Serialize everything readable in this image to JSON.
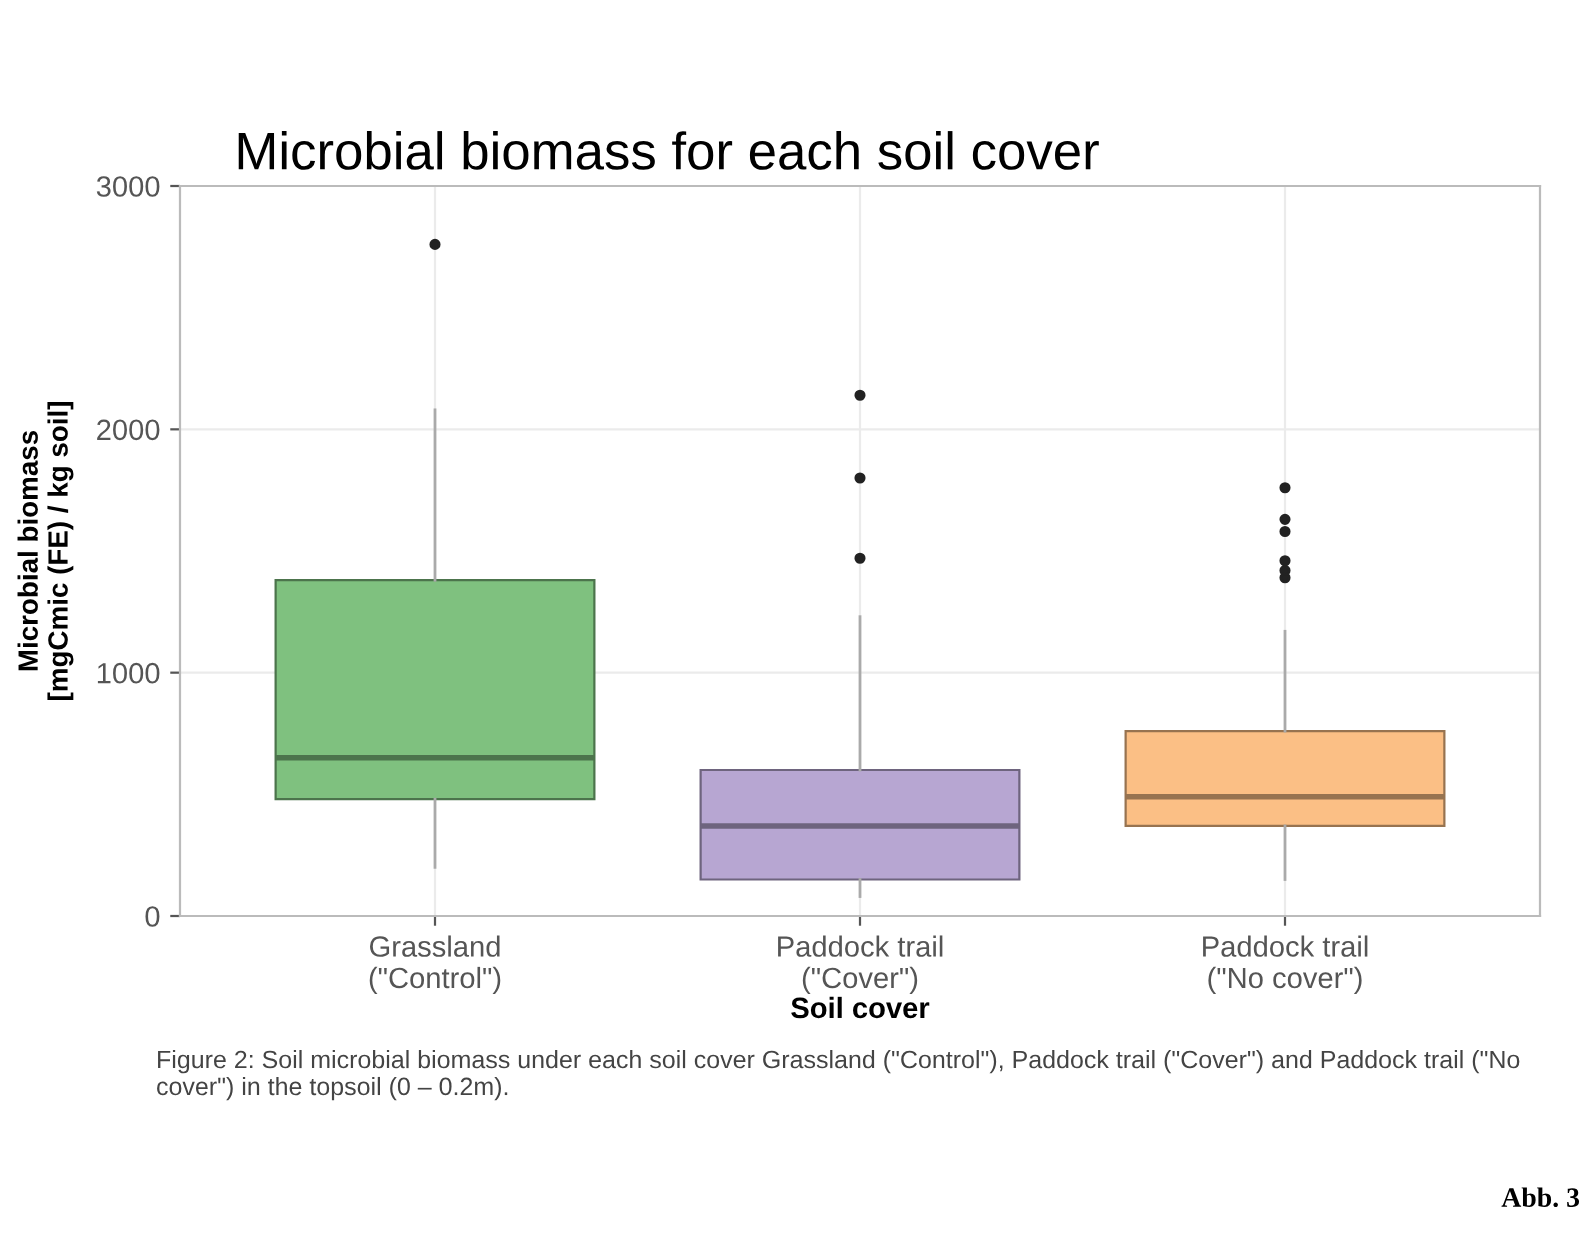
{
  "chart_data": {
    "type": "box",
    "title": "Microbial biomass for each soil cover",
    "xlabel": "Soil cover",
    "ylabel": "Microbial biomass\n[mgCmic (FE) / kg soil]",
    "categories": [
      "Grassland\n(\"Control\")",
      "Paddock trail\n(\"Cover\")",
      "Paddock trail\n(\"No cover\")"
    ],
    "colors": [
      "#7fc17f",
      "#b7a6d2",
      "#fbbf85"
    ],
    "boxes": [
      {
        "low": 200,
        "q1": 480,
        "median": 650,
        "q3": 1380,
        "high": 2080,
        "outliers": [
          2760
        ]
      },
      {
        "low": 80,
        "q1": 150,
        "median": 370,
        "q3": 600,
        "high": 1230,
        "outliers": [
          1470,
          1800,
          2140
        ]
      },
      {
        "low": 150,
        "q1": 370,
        "median": 490,
        "q3": 760,
        "high": 1170,
        "outliers": [
          1390,
          1420,
          1460,
          1580,
          1630,
          1760
        ]
      }
    ],
    "ylim": [
      0,
      3000
    ],
    "yticks": [
      0,
      1000,
      2000,
      3000
    ],
    "grid": true,
    "annotations": [
      "Figure 2: Soil microbial biomass under each soil cover Grassland (\"Control\"), Paddock trail (\"Cover\") and Paddock trail (\"No cover\") in the topsoil (0 – 0.2m).",
      "Abb. 3"
    ]
  }
}
